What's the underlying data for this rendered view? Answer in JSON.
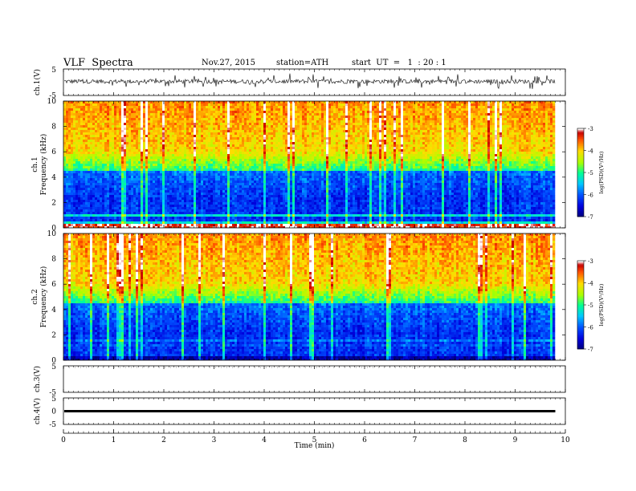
{
  "header": {
    "title": "VLF  Spectra",
    "date": "Nov.27, 2015",
    "station": "station=ATH",
    "start": "start  UT  =   1  : 20 : 1"
  },
  "chart_data": [
    {
      "type": "line",
      "panel": "ch1-waveform",
      "ylabel": "ch.1(V)",
      "yticks": [
        "5",
        "-5"
      ],
      "ylim": [
        -5,
        5
      ],
      "xlim": [
        0,
        10
      ],
      "description_values": {
        "duration_min": 9.8,
        "baseline_V": 0.3
      }
    },
    {
      "type": "heatmap",
      "panel": "ch1-spectrogram",
      "ylabel": "ch.1",
      "ylabel2": "Frequency  (kHz)",
      "yticks": [
        "0",
        "2",
        "4",
        "6",
        "8",
        "10"
      ],
      "ylim": [
        0,
        10
      ],
      "xlim": [
        0,
        9.8
      ],
      "colorbar": {
        "label": "log(PSD)(V²/Hz)",
        "ticks": [
          "-3",
          "-4",
          "-5",
          "-6",
          "-7"
        ],
        "range": [
          -7,
          -3
        ]
      },
      "colors": [
        "#00009c",
        "#0030ff",
        "#00c8ff",
        "#00ff90",
        "#c8ff00",
        "#ffe000",
        "#ff5000",
        "#c80000",
        "#ffffff"
      ]
    },
    {
      "type": "heatmap",
      "panel": "ch2-spectrogram",
      "ylabel": "ch.2",
      "ylabel2": "Frequency  (kHz)",
      "yticks": [
        "0",
        "2",
        "4",
        "6",
        "8",
        "10"
      ],
      "ylim": [
        0,
        10
      ],
      "xlim": [
        0,
        9.8
      ],
      "colorbar": {
        "label": "log(PSD)(V²/Hz)",
        "ticks": [
          "-3",
          "-4",
          "-5",
          "-6",
          "-7"
        ],
        "range": [
          -7,
          -3
        ]
      }
    },
    {
      "type": "line",
      "panel": "ch3-waveform",
      "ylabel": "ch.3(V)",
      "yticks": [
        "5",
        "-5"
      ],
      "ylim": [
        -5,
        5
      ]
    },
    {
      "type": "line",
      "panel": "ch4-waveform",
      "ylabel": "ch.4(V)",
      "yticks": [
        "5",
        "0",
        "-5"
      ],
      "ylim": [
        -5,
        5
      ],
      "values": [
        0,
        0
      ]
    }
  ],
  "xaxis": {
    "label": "Time  (min)",
    "ticks": [
      "0",
      "1",
      "2",
      "3",
      "4",
      "5",
      "6",
      "7",
      "8",
      "9",
      "10"
    ],
    "range": [
      0,
      10
    ]
  }
}
